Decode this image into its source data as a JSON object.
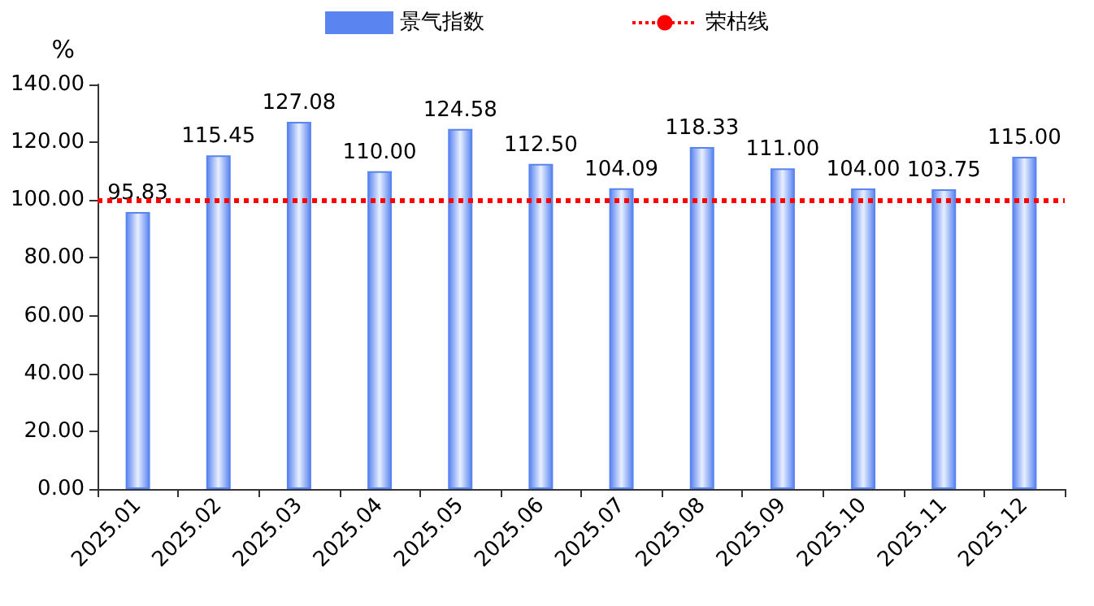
{
  "chart_data": {
    "type": "bar",
    "ylabel": "%",
    "categories": [
      "2025.01",
      "2025.02",
      "2025.03",
      "2025.04",
      "2025.05",
      "2025.06",
      "2025.07",
      "2025.08",
      "2025.09",
      "2025.10",
      "2025.11",
      "2025.12"
    ],
    "series": [
      {
        "name": "景气指数",
        "color": "#5a85f0",
        "values": [
          95.83,
          115.45,
          127.08,
          110.0,
          124.58,
          112.5,
          104.09,
          118.33,
          111.0,
          104.0,
          103.75,
          115.0
        ],
        "value_labels": [
          "95.83",
          "115.45",
          "127.08",
          "110.00",
          "124.58",
          "112.50",
          "104.09",
          "118.33",
          "111.00",
          "104.00",
          "103.75",
          "115.00"
        ]
      }
    ],
    "ref_lines": [
      {
        "axis": "y",
        "value": 100,
        "label": "荣枯线",
        "color": "#ff0000",
        "line_style": "dotted"
      }
    ],
    "ylim": [
      0,
      140
    ],
    "yticks": [
      {
        "value": 0,
        "label": "0.00"
      },
      {
        "value": 20,
        "label": "20.00"
      },
      {
        "value": 40,
        "label": "40.00"
      },
      {
        "value": 60,
        "label": "60.00"
      },
      {
        "value": 80,
        "label": "80.00"
      },
      {
        "value": 100,
        "label": "100.00"
      },
      {
        "value": 120,
        "label": "120.00"
      },
      {
        "value": 140,
        "label": "140.00"
      }
    ],
    "grid": false,
    "legend": "top"
  }
}
